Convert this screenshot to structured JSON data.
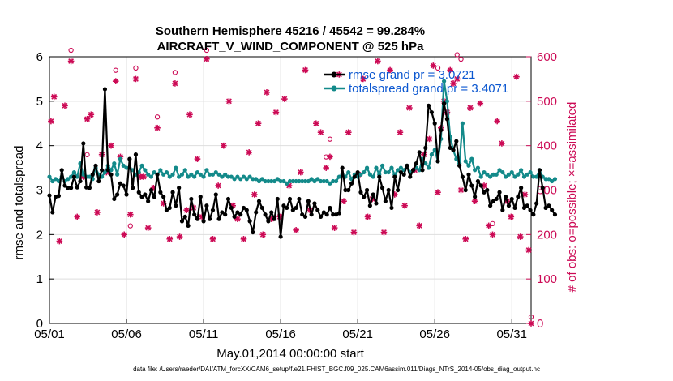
{
  "chart_data": {
    "type": "line",
    "title": "Southern Hemisphere 45216 / 45542 = 99.284%",
    "subtitle": "AIRCRAFT_V_WIND_COMPONENT @ 525 hPa",
    "xlabel": "May.01,2014 00:00:00 start",
    "ylabel": "rmse and totalspread",
    "ylabel_right": "# of obs: o=possible; ×=assimilated",
    "footer": "data file: /Users/raeder/DAI/ATM_forcXX/CAM6_setup/f.e21.FHIST_BGC.f09_025.CAM6assim.011/Diags_NTrS_2014-05/obs_diag_output.nc",
    "xlim": [
      0,
      31.25
    ],
    "ylim": [
      0,
      6
    ],
    "ylim_right": [
      0,
      600
    ],
    "x_ticks": [
      0,
      5,
      10,
      15,
      20,
      25,
      30
    ],
    "x_tick_labels": [
      "05/01",
      "05/06",
      "05/11",
      "05/16",
      "05/21",
      "05/26",
      "05/31"
    ],
    "y_ticks": [
      0,
      1,
      2,
      3,
      4,
      5,
      6
    ],
    "y_ticks_right": [
      0,
      100,
      200,
      300,
      400,
      500,
      600
    ],
    "colors": {
      "rmse": "#000000",
      "spread": "#138a8a",
      "obs": "#cc0a55"
    },
    "series": [
      {
        "name": "rmse grand pr = 3.0721",
        "color": "#000000",
        "values": [
          2.88,
          2.5,
          2.85,
          2.87,
          3.45,
          3.1,
          3.05,
          3.05,
          3.3,
          3.06,
          3.2,
          4.05,
          3.06,
          3.05,
          3.35,
          3.55,
          3.2,
          3.45,
          5.27,
          3.45,
          3.35,
          2.8,
          2.9,
          3.15,
          3.1,
          2.9,
          3.7,
          3.05,
          3.8,
          2.95,
          2.85,
          2.9,
          2.75,
          3.0,
          2.85,
          3.35,
          2.95,
          2.85,
          2.55,
          2.6,
          2.95,
          2.65,
          3.05,
          2.3,
          2.4,
          2.2,
          2.8,
          2.45,
          2.35,
          2.85,
          2.3,
          2.65,
          2.35,
          2.55,
          2.9,
          2.35,
          2.5,
          2.45,
          2.8,
          2.6,
          2.4,
          2.5,
          2.45,
          2.6,
          2.55,
          2.3,
          2.05,
          2.5,
          2.75,
          2.6,
          2.45,
          2.3,
          2.5,
          2.35,
          2.8,
          1.95,
          2.65,
          2.6,
          2.8,
          2.55,
          2.6,
          2.8,
          2.45,
          2.4,
          2.75,
          2.45,
          2.7,
          2.55,
          2.4,
          2.5,
          2.45,
          2.6,
          2.45,
          2.45,
          2.48,
          3.5,
          3.0,
          3.0,
          3.15,
          3.3,
          3.4,
          2.95,
          2.85,
          3.0,
          2.65,
          2.9,
          2.7,
          3.3,
          3.05,
          2.75,
          3.0,
          2.6,
          3.3,
          3.0,
          3.4,
          3.35,
          3.55,
          3.3,
          3.45,
          3.6,
          3.85,
          3.45,
          3.95,
          4.9,
          4.75,
          4.5,
          3.65,
          4.35,
          4.95,
          4.6,
          3.95,
          3.9,
          4.1,
          3.55,
          3.3,
          3.0,
          3.35,
          3.1,
          2.85,
          3.2,
          3.1,
          2.95,
          3.0,
          2.65,
          2.75,
          2.8,
          2.95,
          2.55,
          2.85,
          2.65,
          2.8,
          2.6,
          2.85,
          3.05,
          2.6,
          2.65,
          2.55,
          2.45,
          2.7,
          3.45,
          3.05,
          2.6,
          2.65,
          2.55,
          2.45
        ],
        "x_start": 0,
        "x_step": 0.2
      },
      {
        "name": "totalspread grand pr = 3.4071",
        "color": "#138a8a",
        "values": [
          3.3,
          3.2,
          3.25,
          3.2,
          3.3,
          3.2,
          3.25,
          3.3,
          3.4,
          3.3,
          3.6,
          3.35,
          3.3,
          3.3,
          3.25,
          3.5,
          3.35,
          3.3,
          3.4,
          3.55,
          3.45,
          3.6,
          3.35,
          3.7,
          3.55,
          3.5,
          3.5,
          3.45,
          3.35,
          3.4,
          3.55,
          3.45,
          3.35,
          3.3,
          3.4,
          3.35,
          3.45,
          3.35,
          3.4,
          3.3,
          3.35,
          3.5,
          3.3,
          3.35,
          3.45,
          3.3,
          3.35,
          3.3,
          3.4,
          3.35,
          3.3,
          3.45,
          3.35,
          3.35,
          3.4,
          3.35,
          3.3,
          3.35,
          3.3,
          3.3,
          3.25,
          3.3,
          3.25,
          3.3,
          3.25,
          3.3,
          3.25,
          3.25,
          3.2,
          3.25,
          3.2,
          3.2,
          3.2,
          3.2,
          3.25,
          3.2,
          3.2,
          3.15,
          3.2,
          3.2,
          3.2,
          3.2,
          3.2,
          3.2,
          3.2,
          3.25,
          3.2,
          3.25,
          3.2,
          3.2,
          3.2,
          3.15,
          3.2,
          3.2,
          3.3,
          3.35,
          3.3,
          3.4,
          3.25,
          3.35,
          3.3,
          3.35,
          3.4,
          3.5,
          3.35,
          3.3,
          3.5,
          3.35,
          3.55,
          3.4,
          3.4,
          3.5,
          3.35,
          3.45,
          3.5,
          3.45,
          3.55,
          3.4,
          3.45,
          3.5,
          3.45,
          3.7,
          3.6,
          3.5,
          3.8,
          3.9,
          3.65,
          4.15,
          5.45,
          5.0,
          4.2,
          3.9,
          3.7,
          3.6,
          4.5,
          3.65,
          3.55,
          3.7,
          3.45,
          3.5,
          3.3,
          3.4,
          3.35,
          3.3,
          3.35,
          3.35,
          3.45,
          3.4,
          3.3,
          3.35,
          3.4,
          3.3,
          3.35,
          3.45,
          3.3,
          3.35,
          3.4,
          3.3,
          3.3,
          3.45,
          3.3,
          3.25,
          3.25,
          3.2,
          3.25
        ],
        "x_start": 0,
        "x_step": 0.2
      },
      {
        "name": "obs assimilated",
        "color": "#cc0a55",
        "axis": "right",
        "points": [
          [
            0.1,
            455
          ],
          [
            0.3,
            510
          ],
          [
            0.65,
            185
          ],
          [
            1.0,
            490
          ],
          [
            1.4,
            590
          ],
          [
            1.8,
            240
          ],
          [
            2.2,
            330
          ],
          [
            2.45,
            460
          ],
          [
            2.7,
            470
          ],
          [
            3.1,
            250
          ],
          [
            3.4,
            380
          ],
          [
            3.7,
            340
          ],
          [
            4.0,
            400
          ],
          [
            4.3,
            545
          ],
          [
            4.6,
            375
          ],
          [
            4.85,
            200
          ],
          [
            5.25,
            245
          ],
          [
            5.6,
            550
          ],
          [
            5.9,
            330
          ],
          [
            6.1,
            330
          ],
          [
            6.4,
            215
          ],
          [
            6.75,
            305
          ],
          [
            7.0,
            440
          ],
          [
            7.4,
            270
          ],
          [
            7.8,
            190
          ],
          [
            8.15,
            540
          ],
          [
            8.45,
            195
          ],
          [
            8.9,
            255
          ],
          [
            9.1,
            470
          ],
          [
            9.35,
            260
          ],
          [
            9.6,
            370
          ],
          [
            9.9,
            240
          ],
          [
            10.2,
            595
          ],
          [
            10.6,
            190
          ],
          [
            10.95,
            310
          ],
          [
            11.3,
            400
          ],
          [
            11.65,
            500
          ],
          [
            11.9,
            265
          ],
          [
            12.2,
            235
          ],
          [
            12.6,
            190
          ],
          [
            12.95,
            385
          ],
          [
            13.3,
            290
          ],
          [
            13.55,
            450
          ],
          [
            13.85,
            200
          ],
          [
            14.1,
            520
          ],
          [
            14.4,
            235
          ],
          [
            14.7,
            475
          ],
          [
            14.95,
            240
          ],
          [
            15.25,
            505
          ],
          [
            15.55,
            310
          ],
          [
            16.0,
            210
          ],
          [
            16.3,
            340
          ],
          [
            16.6,
            570
          ],
          [
            16.9,
            255
          ],
          [
            17.3,
            450
          ],
          [
            17.6,
            430
          ],
          [
            17.95,
            350
          ],
          [
            18.2,
            375
          ],
          [
            18.5,
            215
          ],
          [
            18.8,
            560
          ],
          [
            19.1,
            275
          ],
          [
            19.4,
            430
          ],
          [
            19.75,
            205
          ],
          [
            20.05,
            335
          ],
          [
            20.35,
            550
          ],
          [
            20.65,
            240
          ],
          [
            20.95,
            280
          ],
          [
            21.3,
            590
          ],
          [
            21.7,
            205
          ],
          [
            22.1,
            570
          ],
          [
            22.4,
            290
          ],
          [
            22.75,
            430
          ],
          [
            23.05,
            265
          ],
          [
            23.35,
            485
          ],
          [
            23.7,
            345
          ],
          [
            24.0,
            220
          ],
          [
            24.3,
            380
          ],
          [
            24.65,
            415
          ],
          [
            24.9,
            580
          ],
          [
            25.2,
            295
          ],
          [
            25.4,
            440
          ],
          [
            25.6,
            500
          ],
          [
            25.8,
            475
          ],
          [
            26.0,
            570
          ],
          [
            26.2,
            540
          ],
          [
            26.45,
            550
          ],
          [
            26.7,
            300
          ],
          [
            27.0,
            190
          ],
          [
            27.3,
            485
          ],
          [
            27.6,
            275
          ],
          [
            27.95,
            495
          ],
          [
            28.2,
            310
          ],
          [
            28.5,
            220
          ],
          [
            28.75,
            200
          ],
          [
            29.05,
            455
          ],
          [
            29.35,
            405
          ],
          [
            29.7,
            275
          ],
          [
            29.95,
            240
          ],
          [
            30.3,
            555
          ],
          [
            30.55,
            195
          ],
          [
            30.85,
            290
          ],
          [
            31.1,
            165
          ],
          [
            31.25,
            0
          ]
        ]
      },
      {
        "name": "obs possible",
        "color": "#cc0a55",
        "axis": "right",
        "marker": "circle",
        "points": [
          [
            1.4,
            600
          ],
          [
            2.45,
            365
          ],
          [
            4.3,
            555
          ],
          [
            5.25,
            205
          ],
          [
            5.6,
            560
          ],
          [
            7.0,
            450
          ],
          [
            8.15,
            550
          ],
          [
            10.2,
            600
          ],
          [
            17.95,
            360
          ],
          [
            18.2,
            400
          ],
          [
            25.2,
            560
          ],
          [
            26.45,
            590
          ],
          [
            26.7,
            580
          ],
          [
            28.75,
            210
          ],
          [
            31.25,
            0
          ]
        ]
      }
    ]
  }
}
